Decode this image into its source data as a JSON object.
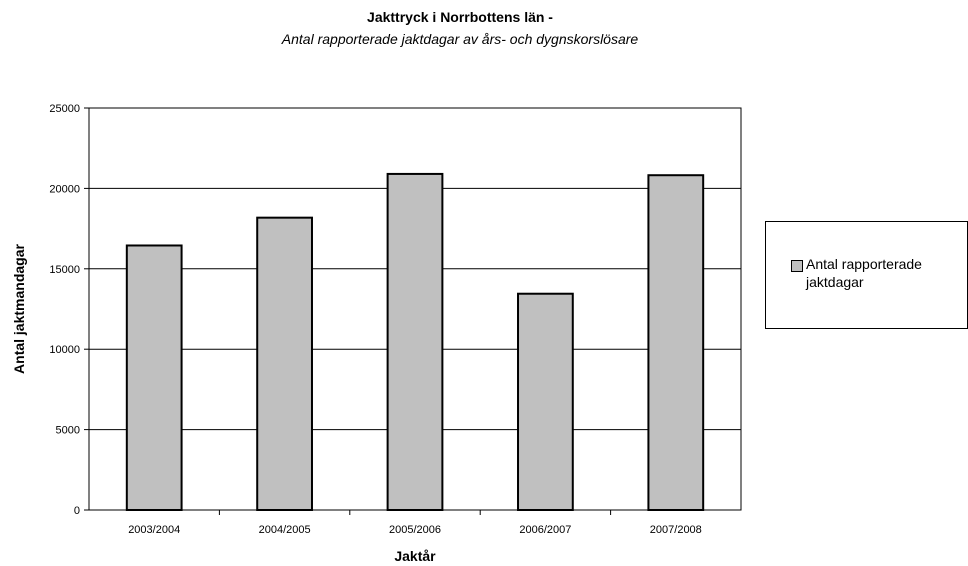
{
  "chart_data": {
    "type": "bar",
    "title": "Jakttryck i Norrbottens län -",
    "subtitle": "Antal rapporterade jaktdagar av års- och dygnskorslösare",
    "xlabel": "Jaktår",
    "ylabel": "Antal jaktmandagar",
    "ylim": [
      0,
      25000
    ],
    "yticks": [
      0,
      5000,
      10000,
      15000,
      20000,
      25000
    ],
    "categories": [
      "2003/2004",
      "2004/2005",
      "2005/2006",
      "2006/2007",
      "2007/2008"
    ],
    "series": [
      {
        "name": "Antal rapporterade jaktdagar",
        "values": [
          16450,
          18180,
          20900,
          13450,
          20820
        ],
        "color": "#c0c0c0"
      }
    ],
    "grid": true,
    "legend": "right"
  }
}
